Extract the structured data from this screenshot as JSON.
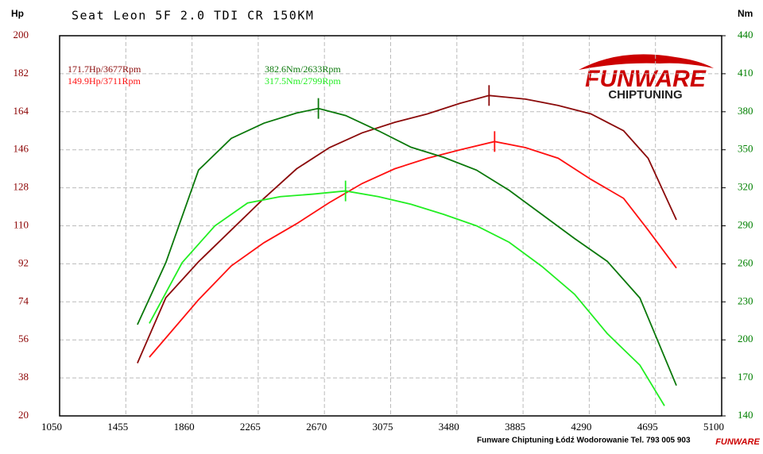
{
  "chart_data": {
    "type": "line",
    "title": "Seat Leon 5F 2.0 TDI CR 150KM",
    "y_label": "Hp",
    "y2_label": "Nm",
    "footer": "Funware Chiptuning Łódź Wodorowanie Tel. 793 005 903",
    "logo": {
      "brand": "FUNWARE",
      "tagline": "CHIPTUNING"
    },
    "xlim": [
      1050,
      5100
    ],
    "xticks": [
      1050,
      1455,
      1860,
      2265,
      2670,
      3075,
      3480,
      3885,
      4290,
      4695,
      5100
    ],
    "ylim": [
      20,
      200
    ],
    "yticks": [
      20,
      38,
      56,
      74,
      92,
      110,
      128,
      146,
      164,
      182,
      200
    ],
    "y2lim": [
      140,
      440
    ],
    "y2ticks": [
      140,
      170,
      200,
      230,
      260,
      290,
      320,
      350,
      380,
      410,
      440
    ],
    "y_color": "#8b0000",
    "y2_color": "#008000",
    "grid": true,
    "series": [
      {
        "color": "#8b0a0a",
        "axis": "y",
        "x": [
          1526,
          1700,
          1900,
          2100,
          2300,
          2500,
          2700,
          2900,
          3100,
          3300,
          3500,
          3677,
          3900,
          4100,
          4300,
          4500,
          4650,
          4823
        ],
        "values": [
          45,
          76,
          93,
          108,
          123,
          137,
          147,
          154,
          159,
          163,
          168,
          171.7,
          170,
          167,
          163,
          155,
          142,
          112.8
        ]
      },
      {
        "color": "#ff1010",
        "axis": "y",
        "x": [
          1599,
          1900,
          2100,
          2300,
          2500,
          2700,
          2900,
          3100,
          3300,
          3500,
          3711,
          3900,
          4100,
          4300,
          4500,
          4650,
          4823
        ],
        "values": [
          47.8,
          75,
          91,
          102,
          111,
          121,
          130,
          137,
          142,
          146,
          149.9,
          147,
          142,
          132,
          123,
          108,
          90
        ]
      },
      {
        "color": "#0a780a",
        "axis": "y2",
        "x": [
          1526,
          1700,
          1900,
          2100,
          2300,
          2500,
          2633,
          2800,
          3000,
          3200,
          3400,
          3600,
          3800,
          4000,
          4200,
          4400,
          4600,
          4823
        ],
        "values": [
          212,
          261,
          334,
          359,
          371,
          379,
          382.6,
          377,
          365,
          352,
          344,
          334,
          318,
          299,
          280,
          262,
          233,
          164
        ]
      },
      {
        "color": "#22ee22",
        "axis": "y2",
        "x": [
          1599,
          1800,
          2000,
          2200,
          2400,
          2600,
          2799,
          3000,
          3200,
          3400,
          3600,
          3800,
          4000,
          4200,
          4400,
          4600,
          4750
        ],
        "values": [
          213,
          261,
          290,
          308,
          313,
          315,
          317.5,
          313,
          307,
          299,
          290,
          277,
          258,
          236,
          205,
          180,
          148
        ]
      }
    ],
    "annotations": [
      {
        "text": "171.7Hp/3677Rpm",
        "color": "#8b0a0a"
      },
      {
        "text": "149.9Hp/3711Rpm",
        "color": "#ff1010"
      },
      {
        "text": "382.6Nm/2633Rpm",
        "color": "#0a780a"
      },
      {
        "text": "317.5Nm/2799Rpm",
        "color": "#22ee22"
      }
    ]
  }
}
